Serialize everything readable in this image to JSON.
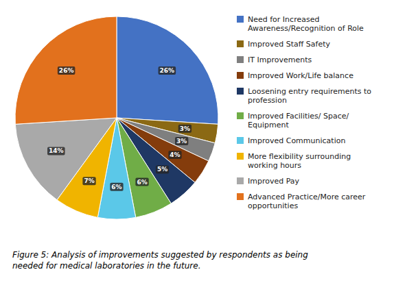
{
  "chart_data": {
    "type": "pie",
    "title": "Figure 5: Analysis of improvements suggested by respondents as being\nneeded for medical laboratories in the future.",
    "categories": [
      "Need for Increased\nAwareness/Recognition of Role",
      "Improved Staff Safety",
      "IT Improvements",
      "Improved Work/Life balance",
      "Loosening entry requirements to\nprofession",
      "Improved Facilities/ Space/\nEquipment",
      "Improved Communication",
      "More flexibility surrounding\nworking hours",
      "Improved Pay",
      "Advanced Practice/More career\nopportunities"
    ],
    "values": [
      26,
      3,
      3,
      4,
      5,
      6,
      6,
      7,
      14,
      26
    ],
    "value_labels": [
      "26%",
      "3%",
      "3%",
      "4%",
      "5%",
      "6%",
      "6%",
      "7%",
      "14%",
      "26%"
    ],
    "colors": [
      "#4472C4",
      "#8B6914",
      "#7F7F7F",
      "#843C0C",
      "#1F3864",
      "#70AD47",
      "#5BC8E8",
      "#F0B400",
      "#A9A9A9",
      "#E2711D"
    ],
    "data_labels": true,
    "legend": "right"
  }
}
